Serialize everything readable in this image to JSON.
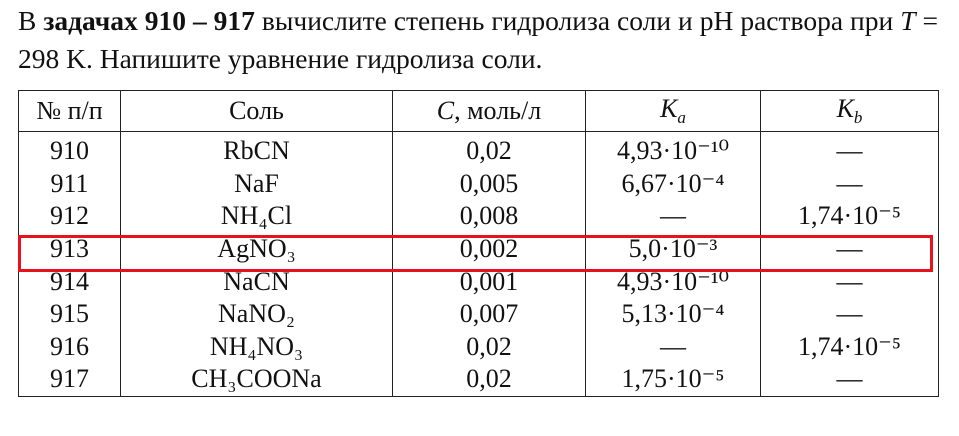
{
  "intro": [
    "В ",
    "задачах 910 – 917",
    " вычислите степень гидролиза соли и pH раствора при ",
    "T",
    " = 298 K. Напишите уравнение гидролиза соли."
  ],
  "table": {
    "header": [
      "№ п/п",
      "Соль",
      {
        "symbol": "C",
        "text": ", моль/л"
      },
      {
        "symbol": "K",
        "subscript": "a"
      },
      {
        "symbol": "K",
        "subscript": "b"
      }
    ],
    "rows": [
      [
        "910",
        "RbCN",
        "0,02",
        "4,93·10⁻¹⁰",
        "—"
      ],
      [
        "911",
        "NaF",
        "0,005",
        "6,67·10⁻⁴",
        "—"
      ],
      [
        "912",
        "NH₄Cl",
        "0,008",
        "—",
        "1,74·10⁻⁵"
      ],
      [
        "913",
        "AgNO₃",
        "0,002",
        "5,0·10⁻³",
        "—"
      ],
      [
        "914",
        "NaCN",
        "0,001",
        "4,93·10⁻¹⁰",
        "—"
      ],
      [
        "915",
        "NaNO₂",
        "0,007",
        "5,13·10⁻⁴",
        "—"
      ],
      [
        "916",
        "NH₄NO₃",
        "0,02",
        "—",
        "1,74·10⁻⁵"
      ],
      [
        "917",
        "CH₃COONa",
        "0,02",
        "1,75·10⁻⁵",
        "—"
      ]
    ]
  }
}
